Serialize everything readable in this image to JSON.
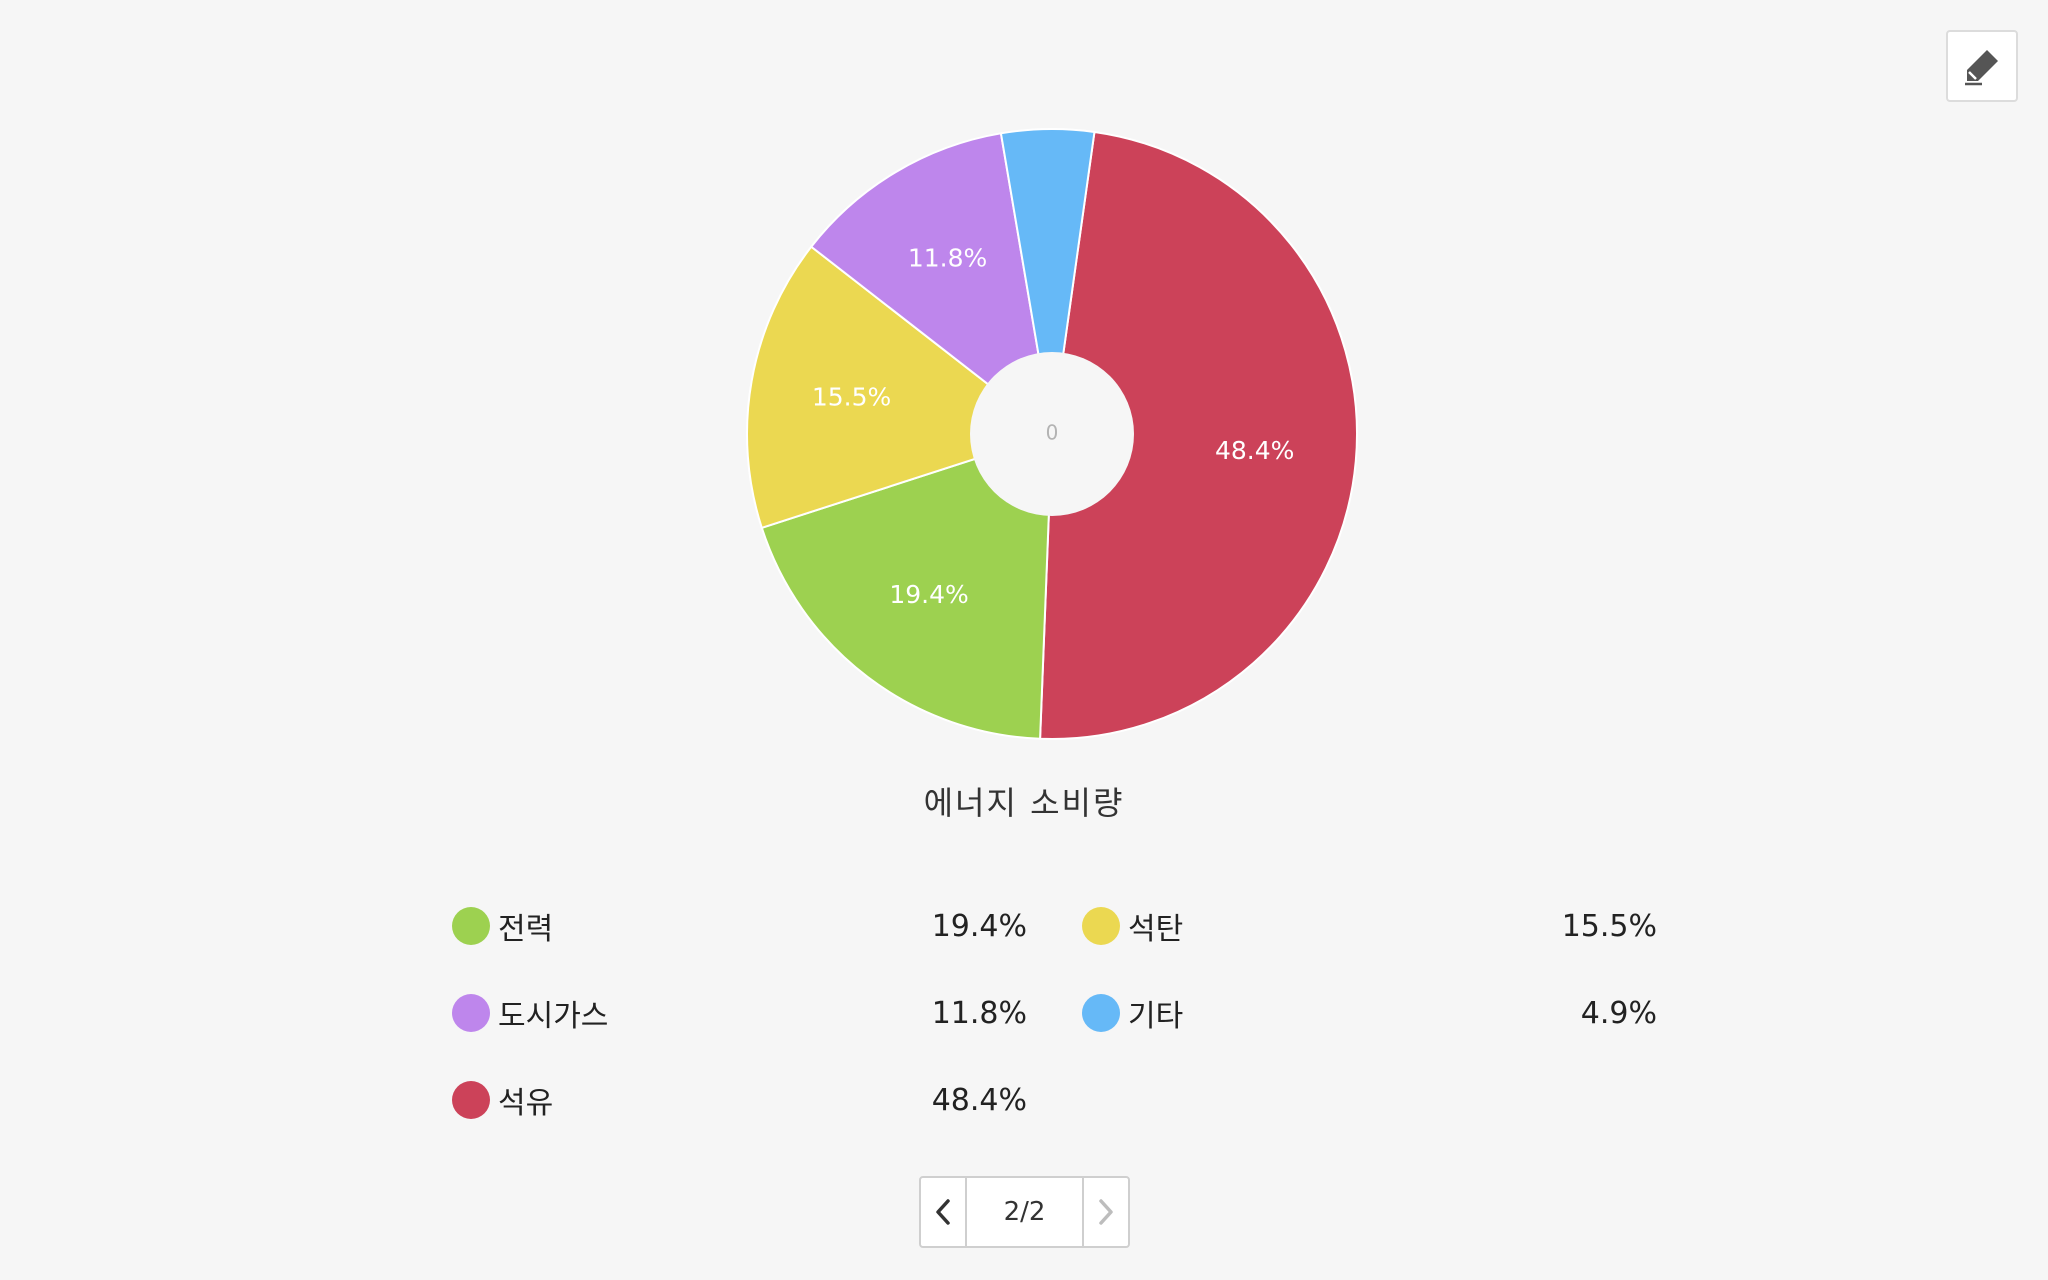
{
  "toolbar": {
    "edit_icon": "pencil-icon"
  },
  "chart_data": {
    "type": "pie",
    "donut": true,
    "title": "에너지 소비량",
    "center_label": "0",
    "slices": [
      {
        "name": "석유",
        "value": 48.4,
        "label": "48.4%",
        "color": "#cc4259"
      },
      {
        "name": "전력",
        "value": 19.4,
        "label": "19.4%",
        "color": "#9dd150"
      },
      {
        "name": "석탄",
        "value": 15.5,
        "label": "15.5%",
        "color": "#ebd851"
      },
      {
        "name": "도시가스",
        "value": 11.8,
        "label": "11.8%",
        "color": "#be86ec"
      },
      {
        "name": "기타",
        "value": 4.9,
        "label": "",
        "color": "#66b9f7"
      }
    ],
    "legend_placement": "bottom"
  },
  "legend": [
    {
      "name": "전력",
      "value": "19.4%",
      "color": "#9dd150"
    },
    {
      "name": "석탄",
      "value": "15.5%",
      "color": "#ebd851"
    },
    {
      "name": "도시가스",
      "value": "11.8%",
      "color": "#be86ec"
    },
    {
      "name": "기타",
      "value": "4.9%",
      "color": "#66b9f7"
    },
    {
      "name": "석유",
      "value": "48.4%",
      "color": "#cc4259"
    }
  ],
  "pager": {
    "text": "2/2",
    "prev_icon": "chevron-left-icon",
    "next_icon": "chevron-right-icon"
  }
}
